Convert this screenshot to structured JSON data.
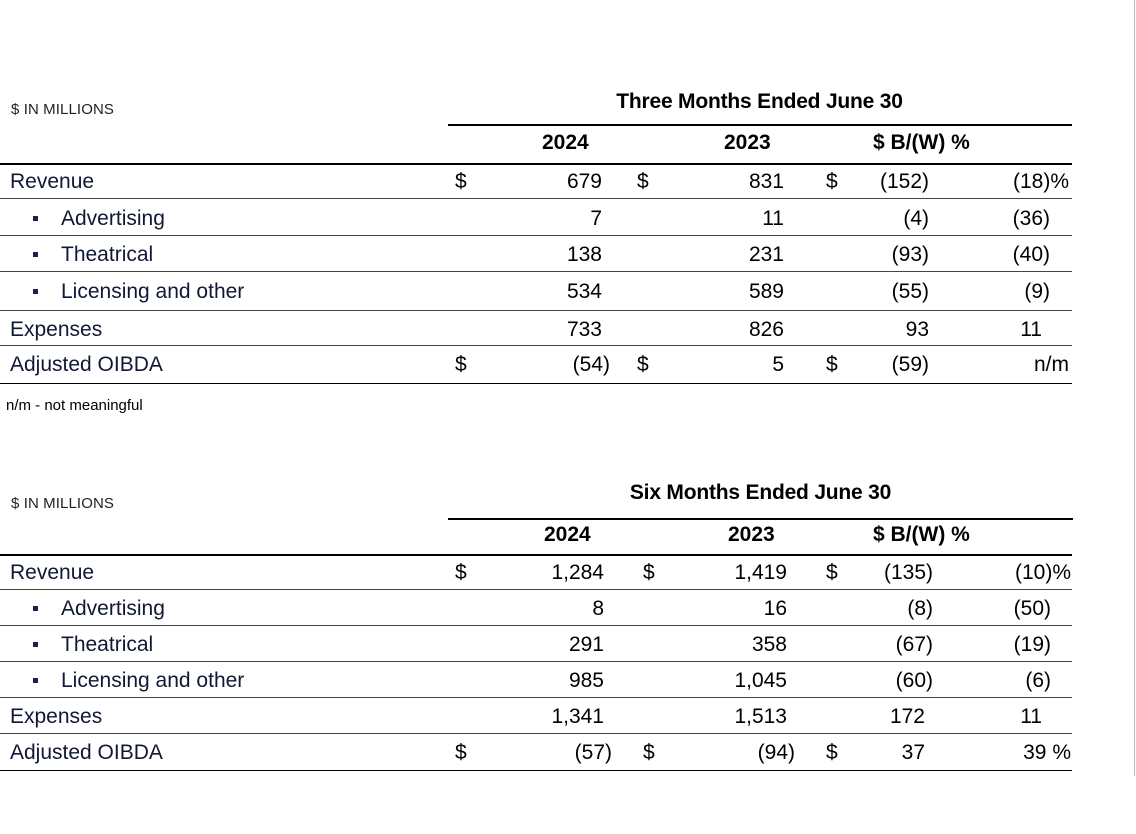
{
  "sections": [
    {
      "unit_label": "$ IN MILLIONS",
      "period_title": "Three Months Ended June 30",
      "columns": {
        "y1": "2024",
        "y2": "2023",
        "var": "$ B/(W) %"
      },
      "rows": [
        {
          "label": "Revenue",
          "cur1": "$",
          "v1": "679",
          "cur2": "$",
          "v2": "831",
          "cur3": "$",
          "d": "(152)",
          "p": "(18)%"
        },
        {
          "label": "Advertising",
          "cur1": "",
          "v1": "7",
          "cur2": "",
          "v2": "11",
          "cur3": "",
          "d": "(4)",
          "p": "(36)"
        },
        {
          "label": "Theatrical",
          "cur1": "",
          "v1": "138",
          "cur2": "",
          "v2": "231",
          "cur3": "",
          "d": "(93)",
          "p": "(40)"
        },
        {
          "label": "Licensing and other",
          "cur1": "",
          "v1": "534",
          "cur2": "",
          "v2": "589",
          "cur3": "",
          "d": "(55)",
          "p": "(9)"
        },
        {
          "label": "Expenses",
          "cur1": "",
          "v1": "733",
          "cur2": "",
          "v2": "826",
          "cur3": "",
          "d": "93",
          "p": "11"
        },
        {
          "label": "Adjusted OIBDA",
          "cur1": "$",
          "v1": "(54)",
          "cur2": "$",
          "v2": "5",
          "cur3": "$",
          "d": "(59)",
          "p": "n/m"
        }
      ],
      "footnote": "n/m - not meaningful"
    },
    {
      "unit_label": "$ IN MILLIONS",
      "period_title": "Six Months Ended June 30",
      "columns": {
        "y1": "2024",
        "y2": "2023",
        "var": "$ B/(W) %"
      },
      "rows": [
        {
          "label": "Revenue",
          "cur1": "$",
          "v1": "1,284",
          "cur2": "$",
          "v2": "1,419",
          "cur3": "$",
          "d": "(135)",
          "p": "(10)%"
        },
        {
          "label": "Advertising",
          "cur1": "",
          "v1": "8",
          "cur2": "",
          "v2": "16",
          "cur3": "",
          "d": "(8)",
          "p": "(50)"
        },
        {
          "label": "Theatrical",
          "cur1": "",
          "v1": "291",
          "cur2": "",
          "v2": "358",
          "cur3": "",
          "d": "(67)",
          "p": "(19)"
        },
        {
          "label": "Licensing and other",
          "cur1": "",
          "v1": "985",
          "cur2": "",
          "v2": "1,045",
          "cur3": "",
          "d": "(60)",
          "p": "(6)"
        },
        {
          "label": "Expenses",
          "cur1": "",
          "v1": "1,341",
          "cur2": "",
          "v2": "1,513",
          "cur3": "",
          "d": "172",
          "p": "11"
        },
        {
          "label": "Adjusted OIBDA",
          "cur1": "$",
          "v1": "(57)",
          "cur2": "$",
          "v2": "(94)",
          "cur3": "$",
          "d": "37",
          "p": "39 %"
        }
      ]
    }
  ]
}
